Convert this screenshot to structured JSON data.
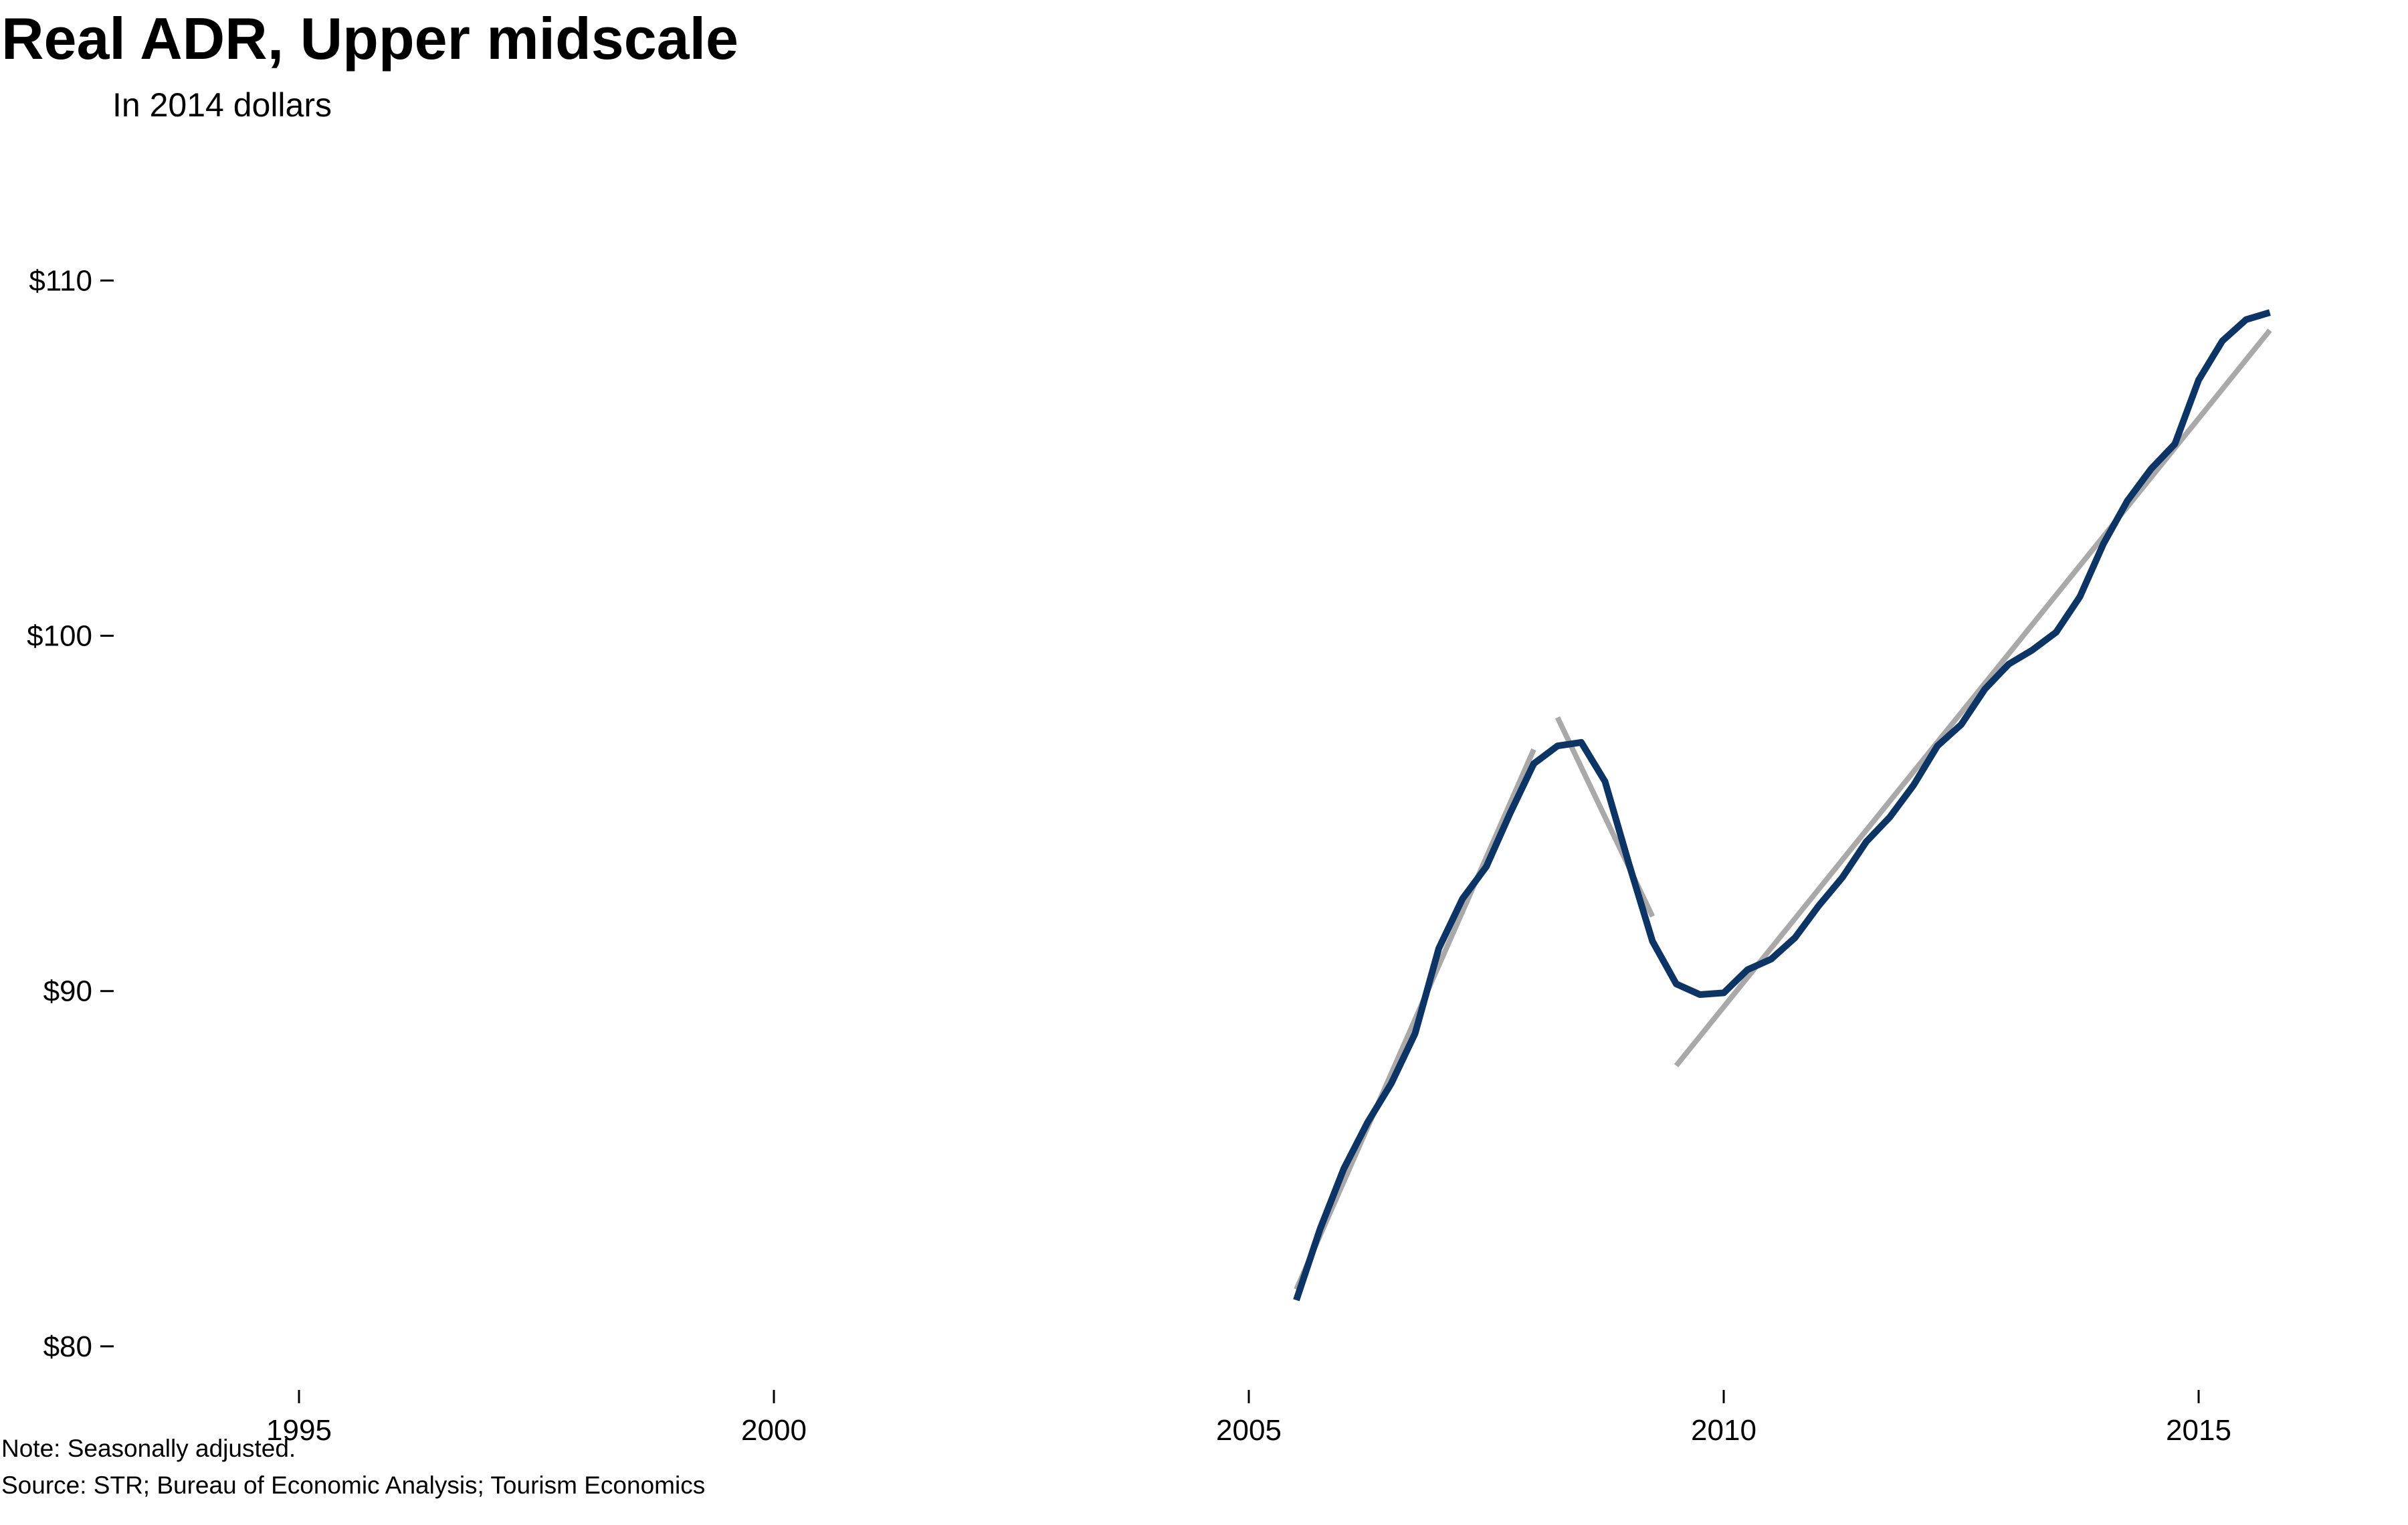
{
  "chart_data": {
    "type": "line",
    "title": "Real ADR, Upper midscale",
    "subtitle": "In 2014 dollars",
    "xlabel": "",
    "ylabel": "",
    "xlim": [
      1993,
      2016.5
    ],
    "ylim": [
      79,
      113
    ],
    "x_ticks": [
      1995,
      2000,
      2005,
      2010,
      2015
    ],
    "y_ticks": [
      80,
      90,
      100,
      110
    ],
    "y_tick_labels": [
      "$80",
      "$90",
      "$100",
      "$110"
    ],
    "grid": false,
    "legend": "none",
    "series": [
      {
        "color": "#0c3566",
        "points": [
          [
            2005.5,
            81.3
          ],
          [
            2005.75,
            83.3
          ],
          [
            2006.0,
            85.0
          ],
          [
            2006.25,
            86.3
          ],
          [
            2006.5,
            87.4
          ],
          [
            2006.75,
            88.8
          ],
          [
            2007.0,
            91.2
          ],
          [
            2007.25,
            92.6
          ],
          [
            2007.5,
            93.5
          ],
          [
            2007.75,
            95.0
          ],
          [
            2008.0,
            96.4
          ],
          [
            2008.25,
            96.9
          ],
          [
            2008.5,
            97.0
          ],
          [
            2008.75,
            95.9
          ],
          [
            2009.0,
            93.6
          ],
          [
            2009.25,
            91.4
          ],
          [
            2009.5,
            90.2
          ],
          [
            2009.75,
            89.9
          ],
          [
            2010.0,
            89.95
          ],
          [
            2010.25,
            90.6
          ],
          [
            2010.5,
            90.9
          ],
          [
            2010.75,
            91.5
          ],
          [
            2011.0,
            92.4
          ],
          [
            2011.25,
            93.2
          ],
          [
            2011.5,
            94.2
          ],
          [
            2011.75,
            94.9
          ],
          [
            2012.0,
            95.8
          ],
          [
            2012.25,
            96.9
          ],
          [
            2012.5,
            97.5
          ],
          [
            2012.75,
            98.5
          ],
          [
            2013.0,
            99.2
          ],
          [
            2013.25,
            99.6
          ],
          [
            2013.5,
            100.1
          ],
          [
            2013.75,
            101.1
          ],
          [
            2014.0,
            102.6
          ],
          [
            2014.25,
            103.8
          ],
          [
            2014.5,
            104.7
          ],
          [
            2014.75,
            105.4
          ],
          [
            2015.0,
            107.2
          ],
          [
            2015.25,
            108.3
          ],
          [
            2015.5,
            108.9
          ],
          [
            2015.75,
            109.1
          ]
        ]
      },
      {
        "color": "#a9a9a9",
        "role": "trend",
        "points": [
          [
            2005.5,
            81.6
          ],
          [
            2008.0,
            96.8
          ]
        ]
      },
      {
        "color": "#a9a9a9",
        "role": "trend",
        "points": [
          [
            2008.25,
            97.7
          ],
          [
            2009.25,
            92.1
          ]
        ]
      },
      {
        "color": "#a9a9a9",
        "role": "trend",
        "points": [
          [
            2009.5,
            87.9
          ],
          [
            2015.75,
            108.6
          ]
        ]
      }
    ]
  },
  "notes": {
    "note": "Note: Seasonally adjusted.",
    "source": "Source: STR; Bureau of Economic Analysis; Tourism Economics"
  }
}
